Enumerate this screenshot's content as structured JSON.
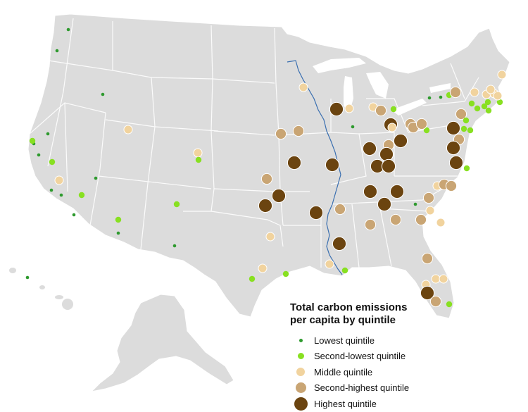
{
  "legend": {
    "title_line1": "Total carbon emissions",
    "title_line2": "per capita by quintile"
  },
  "quintiles": [
    {
      "key": "q1",
      "label": "Lowest quintile",
      "color": "#2e9a2e",
      "size": "smallest"
    },
    {
      "key": "q2",
      "label": "Second-lowest quintile",
      "color": "#88e021",
      "size": "small"
    },
    {
      "key": "q3",
      "label": "Middle quintile",
      "color": "#f1d39e",
      "size": "medium"
    },
    {
      "key": "q4",
      "label": "Second-highest quintile",
      "color": "#c9a574",
      "size": "large"
    },
    {
      "key": "q5",
      "label": "Highest quintile",
      "color": "#6b4410",
      "size": "largest"
    }
  ],
  "colors": {
    "land": "#dcdcdc",
    "borders": "#ffffff",
    "river": "#3a6fb0",
    "background": "#ffffff"
  }
}
